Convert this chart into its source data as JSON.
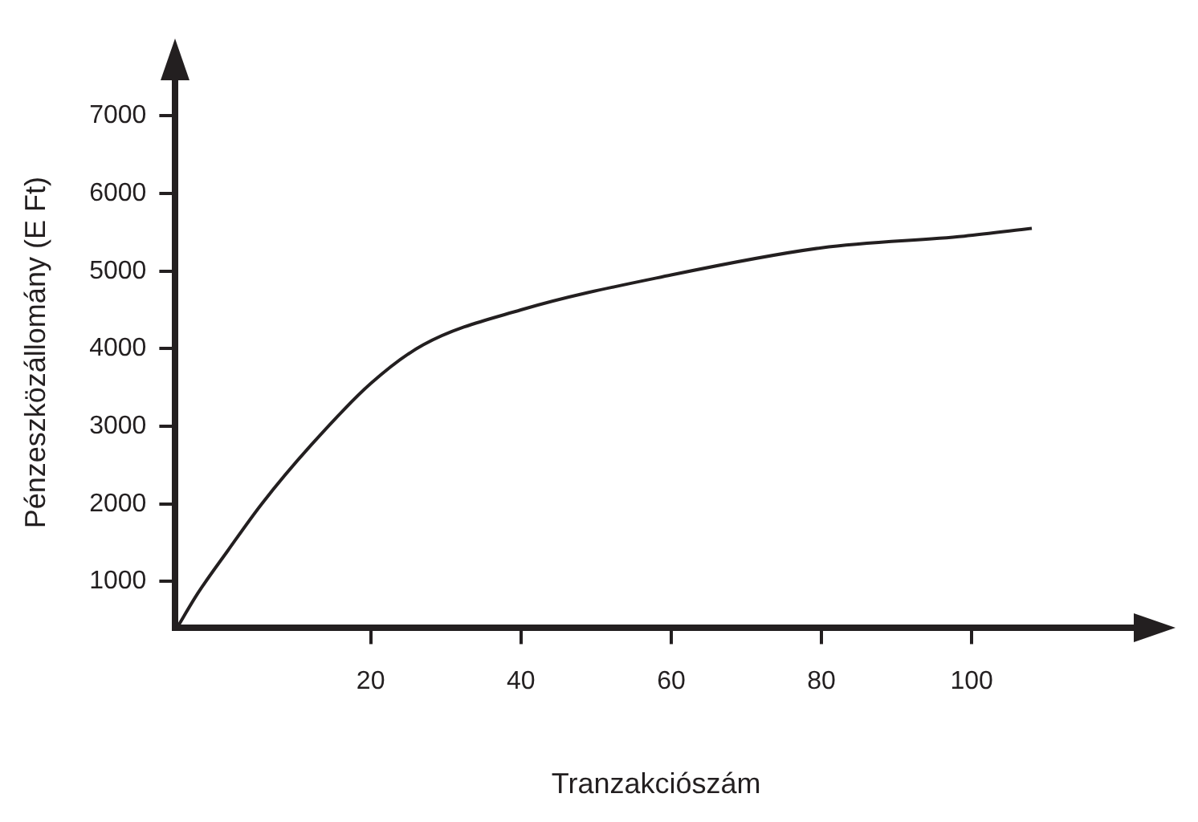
{
  "chart_data": {
    "type": "line",
    "xlabel": "Tranzakciószám",
    "ylabel": "Pénzeszközállomány (E Ft)",
    "x": [
      -5.8,
      -3,
      1,
      5.5,
      12,
      20,
      27,
      40,
      60,
      80,
      99,
      108
    ],
    "series": [
      {
        "color": "#231f20",
        "values": [
          400,
          850,
          1400,
          2000,
          2750,
          3550,
          4050,
          4500,
          4950,
          5300,
          5450,
          5550
        ]
      }
    ],
    "xlim": [
      -6,
      122
    ],
    "ylim": [
      400,
      7500
    ],
    "xticks": [
      20,
      40,
      60,
      80,
      100
    ],
    "yticks": [
      1000,
      2000,
      3000,
      4000,
      5000,
      6000,
      7000
    ],
    "grid": false,
    "legend": false,
    "marker": "none",
    "line_style": "solid"
  }
}
